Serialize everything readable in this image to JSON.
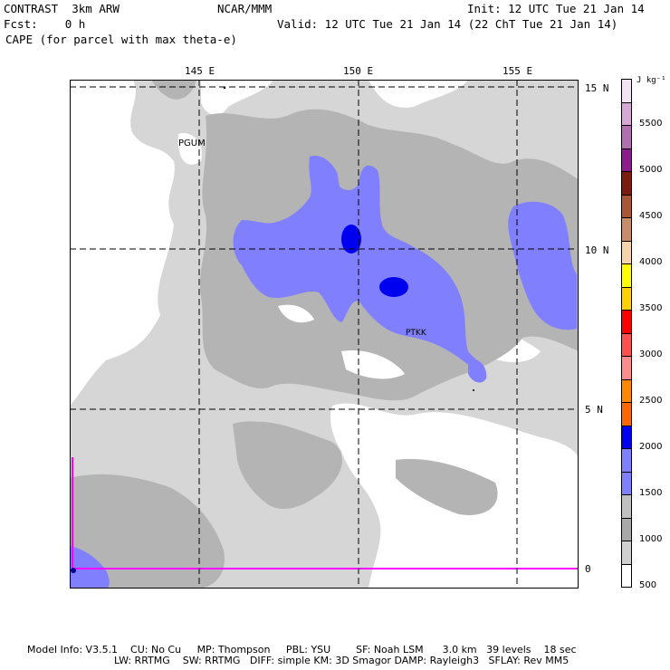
{
  "header": {
    "model_title": "CONTRAST  3km ARW",
    "institution": "NCAR/MMM",
    "init": "Init: 12 UTC Tue 21 Jan 14",
    "forecast": "Fcst:    0 h",
    "valid": "Valid: 12 UTC Tue 21 Jan 14 (22 ChT Tue 21 Jan 14)",
    "field": "CAPE (for parcel with max theta-e)"
  },
  "map": {
    "lon_labels": [
      "145 E",
      "150 E",
      "155 E"
    ],
    "lat_labels": [
      "15 N",
      "10 N",
      "5 N",
      "0"
    ],
    "stations": [
      "PGUM",
      "PTKK"
    ]
  },
  "colorbar": {
    "unit": "J kg⁻¹",
    "labels": [
      "5500",
      "5000",
      "4500",
      "4000",
      "3500",
      "3000",
      "2500",
      "2000",
      "1500",
      "1000",
      "500"
    ],
    "colors": [
      "#f2e4f2",
      "#d6a8d6",
      "#b070b0",
      "#8c1c8c",
      "#7c1c10",
      "#a85634",
      "#c88c6a",
      "#f4d4a8",
      "#ffff00",
      "#ffd000",
      "#ff0000",
      "#ff5050",
      "#ff8c8c",
      "#ff8800",
      "#ff6800",
      "#0000f0",
      "#8080ff",
      "#8080ff",
      "#c0c0c0",
      "#a8a8a8",
      "#d0d0d0",
      "#ffffff"
    ]
  },
  "footer": {
    "line1": "Model Info: V3.5.1    CU: No Cu     MP: Thompson     PBL: YSU        SF: Noah LSM      3.0 km   39 levels    18 sec",
    "line2": "LW: RRTMG    SW: RRTMG   DIFF: simple KM: 3D Smagor DAMP: Rayleigh3   SFLAY: Rev MM5"
  }
}
